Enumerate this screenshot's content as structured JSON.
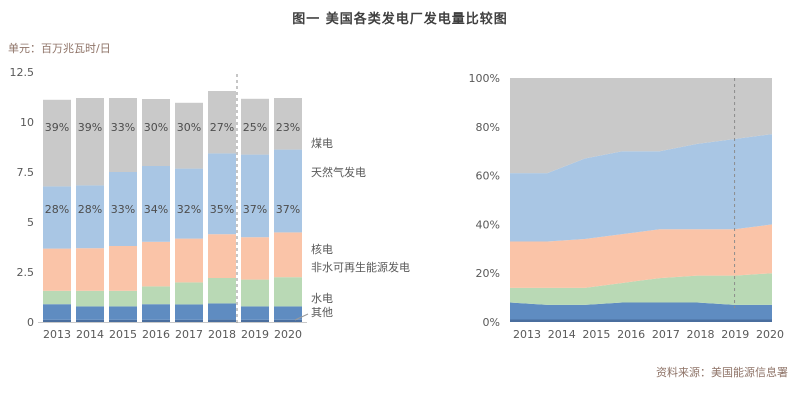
{
  "page": {
    "title": "图一 美国各类发电厂发电量比较图",
    "unit_label": "单元：百万兆瓦时/日",
    "source": "资料来源：美国能源信息署"
  },
  "colors": {
    "coal": "#c9c9c9",
    "gas": "#a9c6e4",
    "nuclear": "#fac4a8",
    "renew": "#b9d9b5",
    "hydro": "#5f8cc1",
    "other": "#4a6e9e",
    "divider": "#8c8c8c",
    "axis_text": "#595959",
    "baseline": "#c9c9c9"
  },
  "chart_data": [
    {
      "type": "bar",
      "stacked": true,
      "unit": "百万兆瓦时/日",
      "categories": [
        "2013",
        "2014",
        "2015",
        "2016",
        "2017",
        "2018",
        "2019",
        "2020"
      ],
      "ylim": [
        0,
        12.5
      ],
      "yticks": [
        {
          "value": 0,
          "label": "0"
        },
        {
          "value": 2.5,
          "label": "2.5"
        },
        {
          "value": 5,
          "label": "5"
        },
        {
          "value": 7.5,
          "label": "7.5"
        },
        {
          "value": 10,
          "label": "10"
        },
        {
          "value": 12.5,
          "label": "12.5"
        }
      ],
      "totals": [
        11.1,
        11.2,
        11.2,
        11.15,
        10.95,
        11.55,
        11.15,
        11.2
      ],
      "series": [
        {
          "key": "other",
          "name": "其他",
          "values": [
            0.11,
            0.11,
            0.11,
            0.11,
            0.11,
            0.12,
            0.11,
            0.11
          ]
        },
        {
          "key": "hydro",
          "name": "水电",
          "values": [
            0.78,
            0.67,
            0.67,
            0.78,
            0.77,
            0.81,
            0.67,
            0.67
          ]
        },
        {
          "key": "renew",
          "name": "非水可再生能源发电",
          "values": [
            0.67,
            0.78,
            0.78,
            0.89,
            1.1,
            1.27,
            1.34,
            1.46
          ]
        },
        {
          "key": "nuclear",
          "name": "核电",
          "values": [
            2.11,
            2.13,
            2.24,
            2.23,
            2.19,
            2.19,
            2.12,
            2.24
          ]
        },
        {
          "key": "gas",
          "name": "天然气发电",
          "values": [
            3.11,
            3.14,
            3.7,
            3.79,
            3.5,
            4.04,
            4.13,
            4.14
          ],
          "labels": [
            "28%",
            "28%",
            "33%",
            "34%",
            "32%",
            "35%",
            "37%",
            "37%"
          ]
        },
        {
          "key": "coal",
          "name": "煤电",
          "values": [
            4.33,
            4.37,
            3.7,
            3.35,
            3.29,
            3.12,
            2.79,
            2.58
          ],
          "labels": [
            "39%",
            "39%",
            "33%",
            "30%",
            "30%",
            "27%",
            "25%",
            "23%"
          ]
        }
      ],
      "divider_after_category": "2018"
    },
    {
      "type": "area",
      "stacked": "percent",
      "categories": [
        "2013",
        "2014",
        "2015",
        "2016",
        "2017",
        "2018",
        "2019",
        "2020"
      ],
      "yticks": [
        {
          "value": 0,
          "label": "0%"
        },
        {
          "value": 20,
          "label": "20%"
        },
        {
          "value": 40,
          "label": "40%"
        },
        {
          "value": 60,
          "label": "60%"
        },
        {
          "value": 80,
          "label": "80%"
        },
        {
          "value": 100,
          "label": "100%"
        }
      ],
      "series": [
        {
          "key": "other",
          "name": "其他",
          "shares_pct": [
            1,
            1,
            1,
            1,
            1,
            1,
            1,
            1
          ]
        },
        {
          "key": "hydro",
          "name": "水电",
          "shares_pct": [
            7,
            6,
            6,
            7,
            7,
            7,
            6,
            6
          ]
        },
        {
          "key": "renew",
          "name": "非水可再生能源发电",
          "shares_pct": [
            6,
            7,
            7,
            8,
            10,
            11,
            12,
            13
          ]
        },
        {
          "key": "nuclear",
          "name": "核电",
          "shares_pct": [
            19,
            19,
            20,
            20,
            20,
            19,
            19,
            20
          ]
        },
        {
          "key": "gas",
          "name": "天然气发电",
          "shares_pct": [
            28,
            28,
            33,
            34,
            32,
            35,
            37,
            37
          ]
        },
        {
          "key": "coal",
          "name": "煤电",
          "shares_pct": [
            39,
            39,
            33,
            30,
            30,
            27,
            25,
            23
          ]
        }
      ],
      "divider_at_category": "2019"
    }
  ]
}
